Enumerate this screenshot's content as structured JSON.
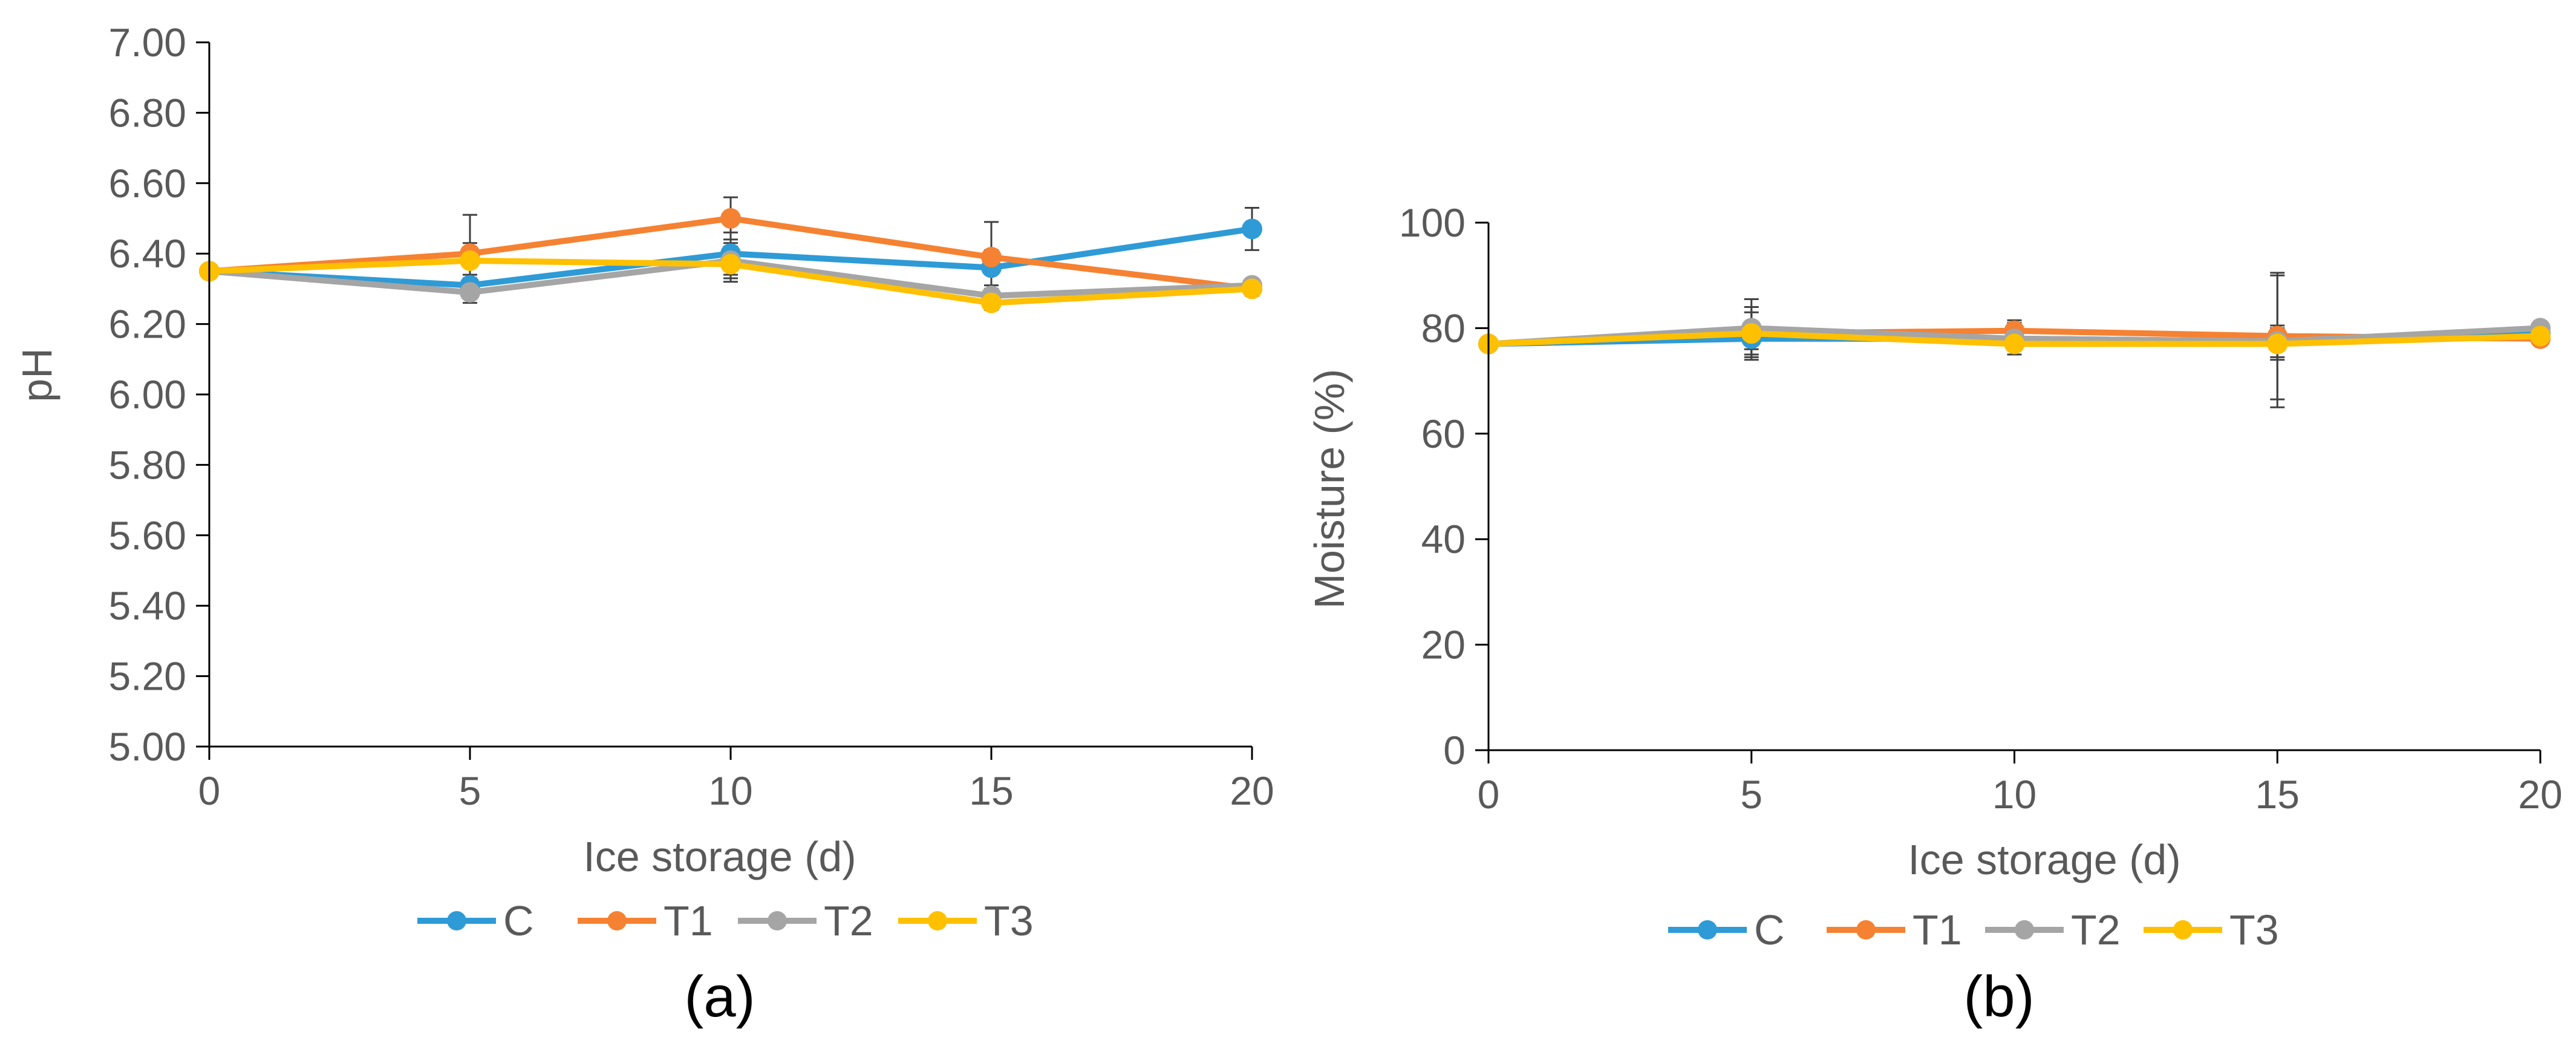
{
  "chart_data": [
    {
      "id": "a",
      "type": "line",
      "panel_label": "(a)",
      "xlabel": "Ice storage (d)",
      "ylabel": "pH",
      "xlim": [
        0,
        20
      ],
      "ylim": [
        5.0,
        7.0
      ],
      "x": [
        0,
        5,
        10,
        15,
        20
      ],
      "x_ticks": [
        0,
        5,
        10,
        15,
        20
      ],
      "x_tick_labels": [
        "0",
        "5",
        "10",
        "15",
        "20"
      ],
      "y_ticks": [
        5.0,
        5.2,
        5.4,
        5.6,
        5.8,
        6.0,
        6.2,
        6.4,
        6.6,
        6.8,
        7.0
      ],
      "y_tick_labels": [
        "5.00",
        "5.20",
        "5.40",
        "5.60",
        "5.80",
        "6.00",
        "6.20",
        "6.40",
        "6.60",
        "6.80",
        "7.00"
      ],
      "grid": false,
      "legend_position": "bottom",
      "series": [
        {
          "name": "C",
          "color": "#2E9BD6",
          "values": [
            6.35,
            6.31,
            6.4,
            6.36,
            6.47
          ],
          "errors": [
            0,
            0.03,
            0.06,
            0.05,
            0.06
          ]
        },
        {
          "name": "T1",
          "color": "#F58232",
          "values": [
            6.35,
            6.4,
            6.5,
            6.39,
            6.3
          ],
          "errors": [
            0,
            0.11,
            0.06,
            0.1,
            0.02
          ]
        },
        {
          "name": "T2",
          "color": "#A5A5A5",
          "values": [
            6.35,
            6.29,
            6.38,
            6.28,
            6.31
          ],
          "errors": [
            0,
            0.03,
            0.05,
            0.02,
            0.01
          ]
        },
        {
          "name": "T3",
          "color": "#FFC000",
          "values": [
            6.35,
            6.38,
            6.37,
            6.26,
            6.3
          ],
          "errors": [
            0,
            0.05,
            0.05,
            0.02,
            0.01
          ]
        }
      ]
    },
    {
      "id": "b",
      "type": "line",
      "panel_label": "(b)",
      "xlabel": "Ice storage (d)",
      "ylabel": "Moisture  (%)",
      "xlim": [
        0,
        20
      ],
      "ylim": [
        0,
        100
      ],
      "x": [
        0,
        5,
        10,
        15,
        20
      ],
      "x_ticks": [
        0,
        5,
        10,
        15,
        20
      ],
      "x_tick_labels": [
        "0",
        "5",
        "10",
        "15",
        "20"
      ],
      "y_ticks": [
        0,
        20,
        40,
        60,
        80,
        100
      ],
      "y_tick_labels": [
        "0",
        "20",
        "40",
        "60",
        "80",
        "100"
      ],
      "grid": false,
      "legend_position": "bottom",
      "series": [
        {
          "name": "C",
          "color": "#2E9BD6",
          "values": [
            77,
            78,
            78,
            77.5,
            79
          ],
          "errors": [
            0,
            2,
            2,
            3,
            1
          ]
        },
        {
          "name": "T1",
          "color": "#F58232",
          "values": [
            77,
            79,
            79.5,
            78.5,
            78
          ],
          "errors": [
            0,
            5,
            2,
            12,
            1
          ]
        },
        {
          "name": "T2",
          "color": "#A5A5A5",
          "values": [
            77,
            80,
            78,
            77.5,
            80
          ],
          "errors": [
            0,
            5.5,
            3,
            12.5,
            1
          ]
        },
        {
          "name": "T3",
          "color": "#FFC000",
          "values": [
            77,
            79,
            77,
            77,
            78.5
          ],
          "errors": [
            0,
            4,
            2,
            3,
            1
          ]
        }
      ]
    }
  ]
}
